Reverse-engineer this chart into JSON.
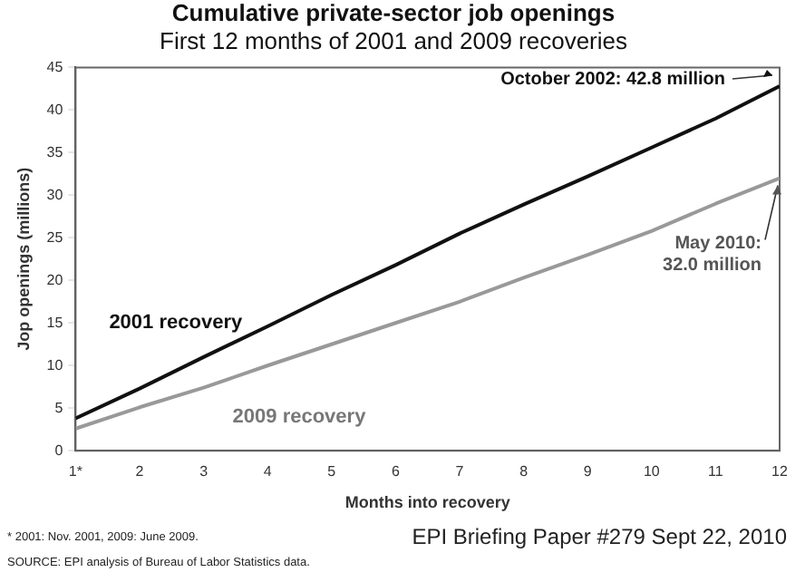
{
  "chart_data": {
    "type": "line",
    "title": "Cumulative private-sector job openings",
    "subtitle": "First 12 months of 2001 and 2009 recoveries",
    "xlabel": "Months into recovery",
    "ylabel": "Jop openings (millions)",
    "x": [
      1,
      2,
      3,
      4,
      5,
      6,
      7,
      8,
      9,
      10,
      11,
      12
    ],
    "xlim": [
      1,
      12
    ],
    "xticks": [
      {
        "value": 1,
        "label": "1*"
      },
      2,
      3,
      4,
      5,
      6,
      7,
      8,
      9,
      10,
      11,
      12
    ],
    "ylim": [
      0,
      45
    ],
    "yticks": [
      0,
      5,
      10,
      15,
      20,
      25,
      30,
      35,
      40,
      45
    ],
    "series": [
      {
        "name": "2001 recovery",
        "color": "#111111",
        "values": [
          3.8,
          7.3,
          11,
          14.6,
          18.3,
          21.8,
          25.5,
          28.9,
          32.2,
          35.6,
          39,
          42.8
        ]
      },
      {
        "name": "2009 recovery",
        "color": "#999999",
        "values": [
          2.6,
          5.1,
          7.4,
          10,
          12.5,
          15,
          17.5,
          20.3,
          23,
          25.8,
          29,
          32.0
        ]
      }
    ],
    "annotations": [
      {
        "text": "October 2002: 42.8 million",
        "x": 12,
        "y": 42.8
      },
      {
        "text": "May 2010: 32.0 million",
        "x": 12,
        "y": 32.0
      },
      "* 2001: Nov. 2001, 2009: June 2009.",
      "SOURCE: EPI analysis of Bureau of Labor Statistics data.",
      "EPI Briefing Paper #279 Sept 22, 2010"
    ],
    "grid": false,
    "legend": false,
    "marker": "none",
    "line_style": "solid"
  }
}
